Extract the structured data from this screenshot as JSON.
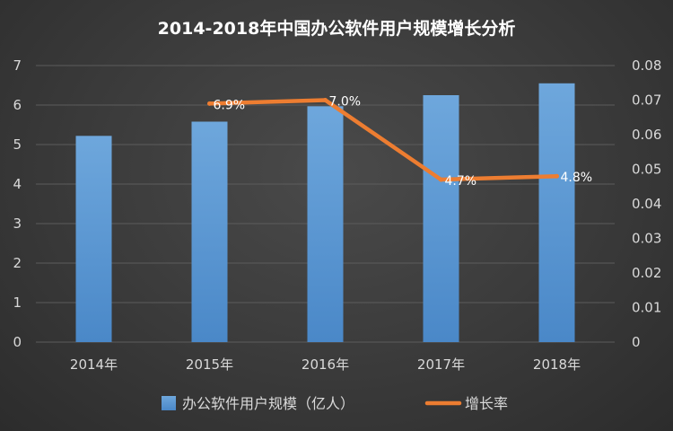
{
  "chart_data": {
    "type": "bar",
    "title": "2014-2018年中国办公软件用户规模增长分析",
    "categories": [
      "2014年",
      "2015年",
      "2016年",
      "2017年",
      "2018年"
    ],
    "series": [
      {
        "name": "办公软件用户规模（亿人）",
        "type": "bar",
        "axis": "left",
        "values": [
          5.22,
          5.58,
          5.97,
          6.25,
          6.55
        ],
        "color": "#5b9bd5"
      },
      {
        "name": "增长率",
        "type": "line",
        "axis": "right",
        "values": [
          null,
          0.069,
          0.07,
          0.047,
          0.048
        ],
        "data_labels": [
          "",
          "6.9%",
          "7.0%",
          "4.7%",
          "4.8%"
        ],
        "color": "#ed7d31"
      }
    ],
    "ylim_left": [
      0,
      7
    ],
    "yticks_left": [
      "0",
      "1",
      "2",
      "3",
      "4",
      "5",
      "6",
      "7"
    ],
    "ylim_right": [
      0,
      0.08
    ],
    "yticks_right": [
      "0",
      "0.01",
      "0.02",
      "0.03",
      "0.04",
      "0.05",
      "0.06",
      "0.07",
      "0.08"
    ],
    "grid": true,
    "legend": "bottom"
  }
}
